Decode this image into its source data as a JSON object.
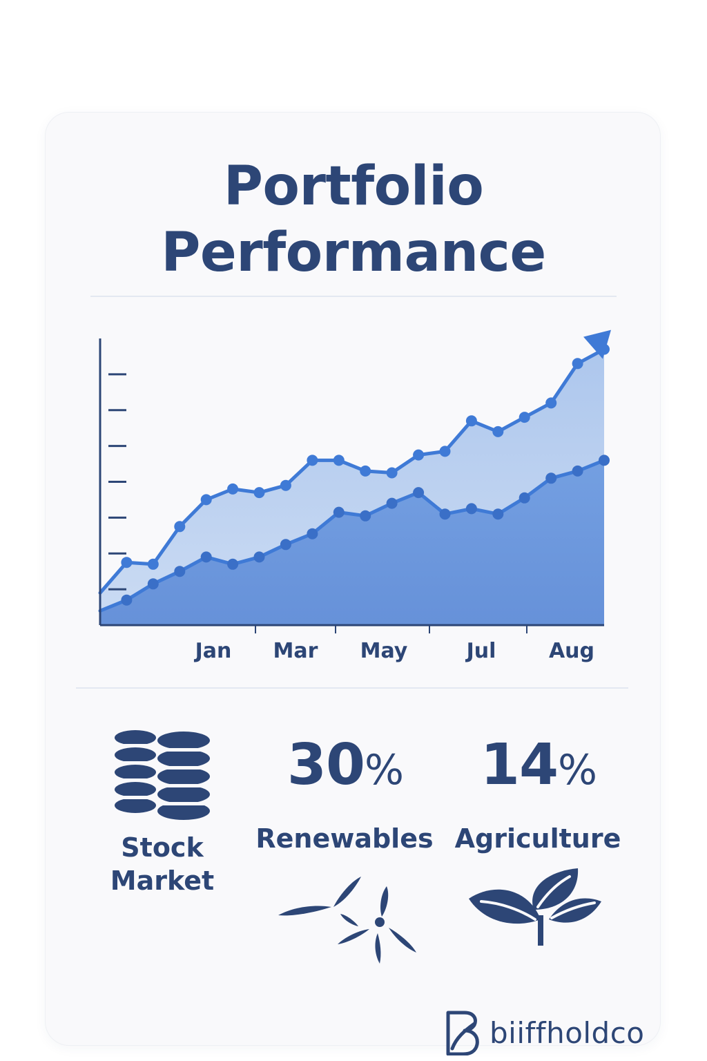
{
  "page": {
    "title_line1": "Portfolio",
    "title_line2": "Performance"
  },
  "colors": {
    "navy": "#2d4676",
    "line_blue": "#3f7ad6",
    "area_light": "#b9cfee",
    "area_dark": "#6d9be2"
  },
  "chart_data": {
    "type": "area",
    "title": "Portfolio Performance",
    "xlabel": "",
    "ylabel": "",
    "x_tick_labels": [
      "Jan",
      "Mar",
      "May",
      "Jul",
      "Aug"
    ],
    "x": [
      0,
      1,
      2,
      3,
      4,
      5,
      6,
      7,
      8,
      9,
      10,
      11,
      12,
      13,
      14,
      15,
      16,
      17,
      18,
      19
    ],
    "ylim": [
      0,
      8
    ],
    "y_ticks": 7,
    "grid": false,
    "series": [
      {
        "values": [
          0.9,
          1.75,
          1.7,
          2.75,
          3.5,
          3.8,
          3.7,
          3.9,
          4.6,
          4.6,
          4.3,
          4.25,
          4.75,
          4.85,
          5.7,
          5.4,
          5.8,
          6.2,
          7.3,
          7.7
        ]
      },
      {
        "values": [
          0.4,
          0.7,
          1.15,
          1.5,
          1.9,
          1.7,
          1.9,
          2.25,
          2.55,
          3.15,
          3.05,
          3.4,
          3.7,
          3.1,
          3.25,
          3.1,
          3.55,
          4.1,
          4.3,
          4.6
        ]
      }
    ]
  },
  "stats": {
    "stock": {
      "label_line1": "Stock",
      "label_line2": "Market",
      "icon": "coin-stacks-icon"
    },
    "renewables": {
      "value": "30",
      "unit": "%",
      "label": "Renewables",
      "icon": "wind-turbine-icon"
    },
    "agriculture": {
      "value": "14",
      "unit": "%",
      "label": "Agriculture",
      "icon": "leaves-icon"
    }
  },
  "brand": {
    "name": "biiffholdco",
    "icon": "b-monogram-icon"
  }
}
